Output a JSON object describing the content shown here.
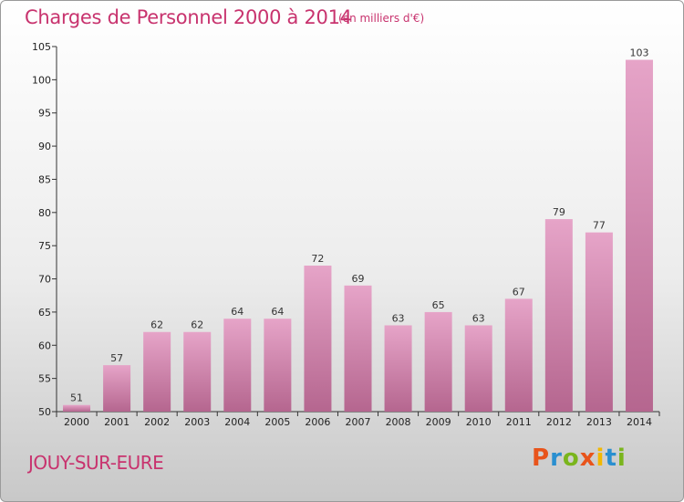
{
  "header": {
    "title": "Charges de Personnel 2000 à 2014",
    "subtitle": "(en milliers d'€)"
  },
  "footer": {
    "city": "JOUY-SUR-EURE",
    "logo_text": "Proxiti"
  },
  "colors": {
    "title": "#c8336e",
    "bar_top": "#e6a4c8",
    "bar_bottom": "#b5668f",
    "axis": "#333333"
  },
  "chart_data": {
    "type": "bar",
    "title": "Charges de Personnel 2000 à 2014",
    "subtitle": "(en milliers d'€)",
    "xlabel": "",
    "ylabel": "",
    "categories": [
      "2000",
      "2001",
      "2002",
      "2003",
      "2004",
      "2005",
      "2006",
      "2007",
      "2008",
      "2009",
      "2010",
      "2011",
      "2012",
      "2013",
      "2014"
    ],
    "values": [
      51,
      57,
      62,
      62,
      64,
      64,
      72,
      69,
      63,
      65,
      63,
      67,
      79,
      77,
      103
    ],
    "ylim": [
      50,
      105
    ],
    "yticks": [
      50,
      55,
      60,
      65,
      70,
      75,
      80,
      85,
      90,
      95,
      100,
      105
    ],
    "grid": false,
    "data_labels": true
  }
}
